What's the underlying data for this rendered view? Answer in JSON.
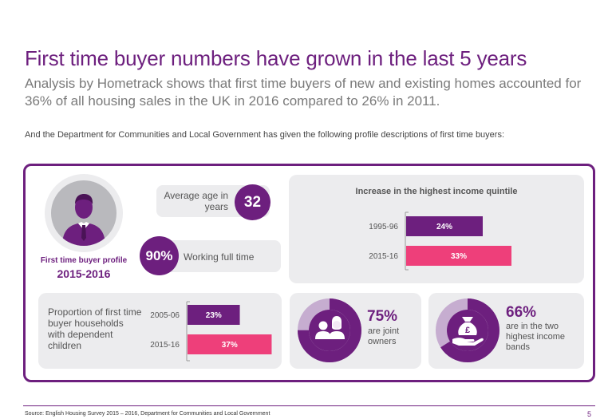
{
  "page": {
    "title": "First time buyer numbers have grown in the last 5 years",
    "subtitle": "Analysis by Hometrack shows that first time buyers of new and existing homes accounted for 36% of all housing sales in the UK in 2016 compared to 26% in 2011.",
    "intro": "And the Department for Communities and Local Government has given the following profile descriptions of first time buyers:",
    "source": "Source: English Housing Survey 2015 – 2016, Department for Communities and Local Government",
    "page_number": "5"
  },
  "profile": {
    "label": "First time buyer profile",
    "years": "2015-2016",
    "avatar_icon": "person-silhouette-icon"
  },
  "age": {
    "label": "Average age in years",
    "value": "32"
  },
  "working": {
    "value": "90%",
    "label": "Working full time"
  },
  "joint": {
    "value": "75%",
    "label": "are joint owners",
    "fraction": 0.75,
    "icon": "couple-icon"
  },
  "income_bands": {
    "value": "66%",
    "label": "are in the two highest income bands",
    "fraction": 0.66,
    "icon": "money-bag-icon"
  },
  "children": {
    "label": "Proportion of first time buyer households with dependent children"
  },
  "colors": {
    "purple": "#6d1f7e",
    "pink": "#ee3f7a",
    "lavender": "#c6add0",
    "panel": "#ececee"
  },
  "chart_data": [
    {
      "type": "bar",
      "orientation": "horizontal",
      "title": "Increase in the highest income quintile",
      "categories": [
        "1995-96",
        "2015-16"
      ],
      "values": [
        24,
        33
      ],
      "labels": [
        "24%",
        "33%"
      ],
      "colors": [
        "#6d1f7e",
        "#ee3f7a"
      ],
      "xlim": [
        0,
        40
      ]
    },
    {
      "type": "bar",
      "orientation": "horizontal",
      "title": "Proportion of first time buyer households with dependent children",
      "categories": [
        "2005-06",
        "2015-16"
      ],
      "values": [
        23,
        37
      ],
      "labels": [
        "23%",
        "37%"
      ],
      "colors": [
        "#6d1f7e",
        "#ee3f7a"
      ],
      "xlim": [
        0,
        40
      ]
    }
  ]
}
